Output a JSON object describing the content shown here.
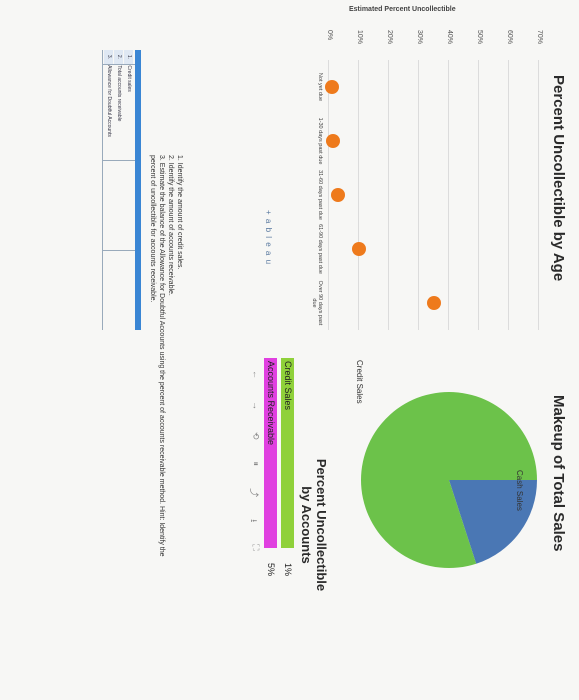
{
  "chart_data": [
    {
      "type": "scatter",
      "title": "Percent Uncollectible by Age",
      "ylabel": "Estimated Percent Uncollectible",
      "y_ticks": [
        "70%",
        "60%",
        "50%",
        "40%",
        "30%",
        "20%",
        "10%",
        "0%"
      ],
      "ylim": [
        0,
        70
      ],
      "categories": [
        "Not yet due",
        "1-30 days past due",
        "31-60 days past due",
        "61-90 days past due",
        "Over 90 days past due"
      ],
      "values": [
        1,
        1.5,
        3,
        10,
        35
      ],
      "marker_color": "#ee7a1c"
    },
    {
      "type": "pie",
      "title": "Makeup of Total Sales",
      "labels": [
        "Cash Sales",
        "Credit Sales"
      ],
      "values": [
        20,
        80
      ],
      "colors": [
        "#4a77b4",
        "#6cc24a"
      ]
    },
    {
      "type": "table",
      "title": "Percent Uncollectible by Accounts",
      "rows": [
        {
          "label": "Credit Sales",
          "value": "1%",
          "color": "#8fd13a"
        },
        {
          "label": "Accounts Receivable",
          "value": "5%",
          "color": "#e040e0"
        }
      ]
    }
  ],
  "instructions": {
    "line1": "1. Identify the amount of credit sales.",
    "line2": "2. Identify the amount of accounts receivable.",
    "line3": "3. Estimate the balance of the Allowance for Doubtful Accounts using the percent of accounts receivable method. Hint: Identify the",
    "line4": "percent of uncollectible for accounts receivable."
  },
  "answer_table": {
    "rows": [
      {
        "num": "1.",
        "label": "Credit sales"
      },
      {
        "num": "2.",
        "label": "Total accounts receivable"
      },
      {
        "num": "3.",
        "label": "Allowance for Doubtful Accounts"
      }
    ]
  },
  "logo_text": "+ a b l e a u",
  "toolbar": {
    "undo": "←",
    "redo": "→",
    "reset": "⟲",
    "pause": "⏸",
    "share": "⤴",
    "download": "⭳",
    "fullscreen": "⛶"
  }
}
